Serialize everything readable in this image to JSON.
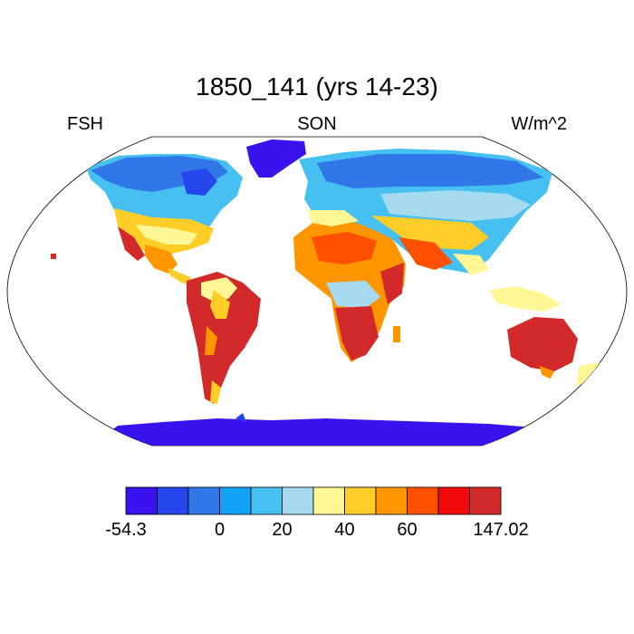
{
  "map": {
    "title": "1850_141 (yrs 14-23)",
    "left_label": "FSH",
    "center_label": "SON",
    "right_label": "W/m^2",
    "projection": "robinson",
    "colors": {
      "ocean": "#ffffff",
      "antarctica": "#3a12ee",
      "greenland": "#3a12ee",
      "coast": "#000000"
    }
  },
  "colorbar": {
    "colors": [
      "#3a12ee",
      "#2446ea",
      "#3177e8",
      "#12a2f6",
      "#46c0f0",
      "#a6daf0",
      "#fff795",
      "#ffcd27",
      "#ff9600",
      "#ff5000",
      "#f00a0a",
      "#d22a2a"
    ],
    "tick_labels": [
      "-54.3",
      "0",
      "20",
      "40",
      "60",
      "147.02"
    ]
  }
}
